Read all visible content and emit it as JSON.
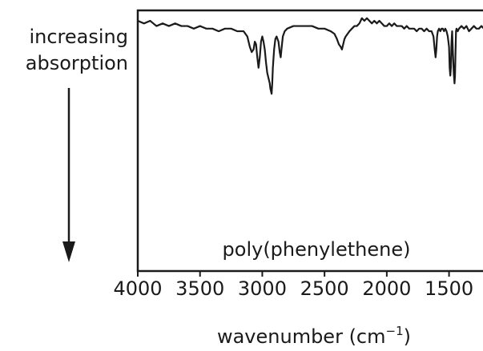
{
  "chart_data": {
    "type": "line",
    "title": "",
    "annotation": "poly(phenylethene)",
    "y_annotation": [
      "increasing",
      "absorption"
    ],
    "xlabel": "wavenumber (cm",
    "xlabel_sup": "−1",
    "xlabel_close": ")",
    "xlim": [
      4000,
      1150
    ],
    "x_reversed": true,
    "ylabel": "",
    "ylim": [
      0,
      100
    ],
    "y_direction": "absorption increases downward",
    "xticks": [
      4000,
      3500,
      3000,
      2500,
      2000,
      1500
    ],
    "xtick_labels": [
      "4000",
      "3500",
      "3000",
      "2500",
      "2000",
      "1500"
    ],
    "grid": false,
    "line_color": "#1a1a1a",
    "series": [
      {
        "x": [
          4000,
          3950,
          3900,
          3850,
          3800,
          3750,
          3700,
          3650,
          3600,
          3550,
          3500,
          3450,
          3400,
          3350,
          3300,
          3250,
          3200,
          3150,
          3120,
          3100,
          3085,
          3070,
          3060,
          3050,
          3040,
          3030,
          3020,
          3010,
          3000,
          2990,
          2980,
          2970,
          2960,
          2950,
          2940,
          2935,
          2925,
          2920,
          2915,
          2905,
          2895,
          2885,
          2870,
          2860,
          2852,
          2846,
          2835,
          2820,
          2800,
          2750,
          2700,
          2650,
          2600,
          2550,
          2500,
          2450,
          2420,
          2400,
          2385,
          2370,
          2360,
          2350,
          2340,
          2330,
          2315,
          2300,
          2280,
          2260,
          2240,
          2220,
          2200,
          2180,
          2160,
          2140,
          2120,
          2100,
          2080,
          2060,
          2040,
          2020,
          2000,
          1980,
          1960,
          1940,
          1920,
          1900,
          1880,
          1860,
          1840,
          1820,
          1800,
          1780,
          1760,
          1740,
          1720,
          1700,
          1680,
          1660,
          1640,
          1625,
          1615,
          1608,
          1602,
          1596,
          1590,
          1580,
          1570,
          1560,
          1550,
          1540,
          1530,
          1520,
          1510,
          1500,
          1495,
          1490,
          1485,
          1480,
          1475,
          1470,
          1462,
          1456,
          1452,
          1448,
          1444,
          1440,
          1430,
          1420,
          1400,
          1380,
          1360,
          1340,
          1320,
          1300,
          1280,
          1260,
          1240,
          1220,
          1200,
          1180,
          1160,
          1150
        ],
        "y": [
          96,
          95,
          96,
          94,
          95,
          94,
          95,
          94,
          94,
          93,
          94,
          93,
          93,
          92,
          93,
          93,
          92,
          92,
          90,
          86,
          84,
          85,
          88,
          87,
          82,
          78,
          82,
          88,
          90,
          88,
          85,
          80,
          76,
          74,
          72,
          70,
          68,
          72,
          78,
          85,
          89,
          90,
          88,
          84,
          82,
          85,
          90,
          92,
          93,
          94,
          94,
          94,
          94,
          93,
          93,
          92,
          91,
          89,
          87,
          86,
          85,
          87,
          89,
          90,
          91,
          92,
          93,
          94,
          94,
          95,
          97,
          96,
          97,
          96,
          95,
          96,
          95,
          96,
          95,
          94,
          94,
          95,
          94,
          95,
          94,
          94,
          94,
          93,
          94,
          93,
          93,
          93,
          92,
          93,
          93,
          92,
          93,
          92,
          92,
          90,
          85,
          82,
          85,
          90,
          92,
          93,
          92,
          93,
          93,
          92,
          93,
          92,
          90,
          86,
          78,
          75,
          78,
          88,
          92,
          85,
          76,
          72,
          75,
          84,
          92,
          93,
          92,
          93,
          94,
          93,
          94,
          92,
          93,
          94,
          93,
          93,
          94,
          93,
          92,
          94,
          95,
          94
        ]
      }
    ]
  }
}
